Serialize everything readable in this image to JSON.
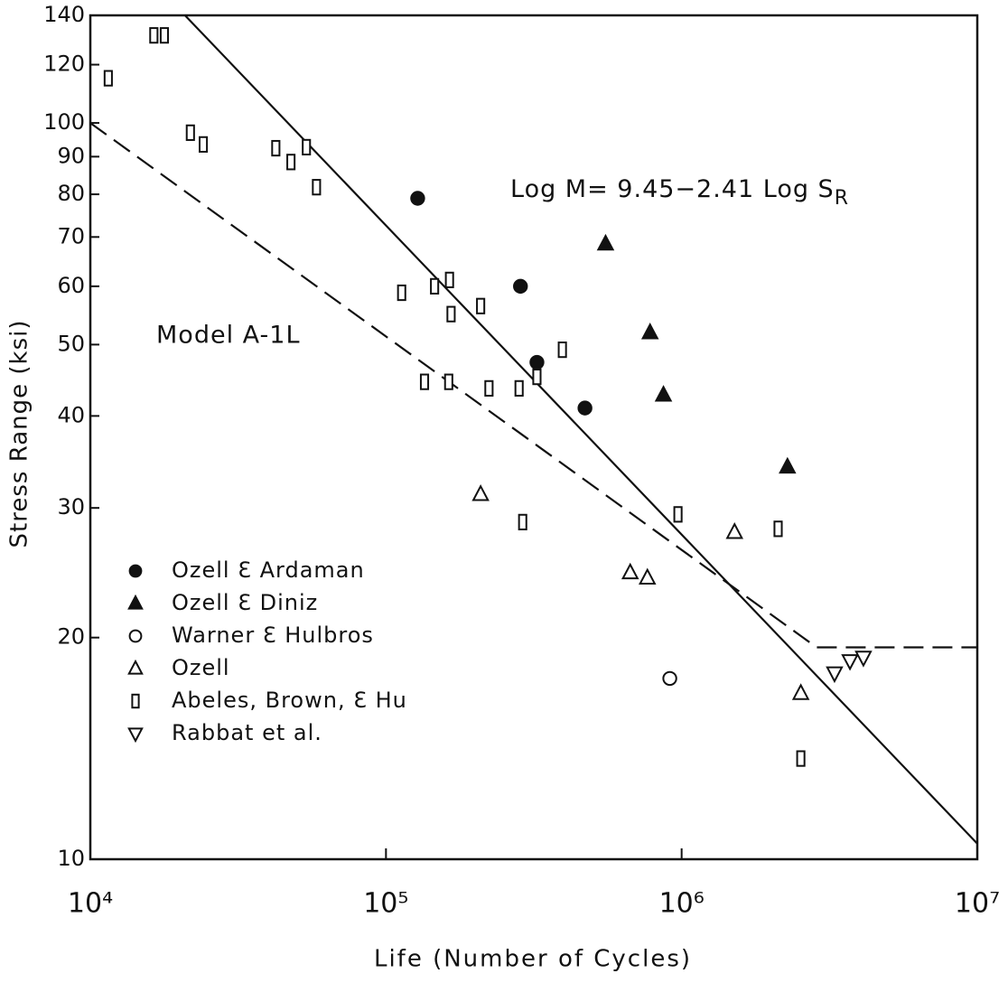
{
  "chart_data": {
    "type": "scatter",
    "xlabel": "Life (Number of Cycles)",
    "ylabel": "Stress Range (ksi)",
    "log_x": true,
    "log_y": true,
    "xlim": [
      10000,
      10000000
    ],
    "ylim": [
      10,
      140
    ],
    "xticks": [
      {
        "value": 10000,
        "label": "10⁴"
      },
      {
        "value": 100000,
        "label": "10⁵"
      },
      {
        "value": 1000000,
        "label": "10⁶"
      },
      {
        "value": 10000000,
        "label": "10⁷"
      }
    ],
    "yticks": [
      10,
      20,
      30,
      40,
      50,
      60,
      70,
      80,
      90,
      100,
      120,
      140
    ],
    "annotations": [
      {
        "text": "Log M= 9.45−2.41 Log S",
        "sub": "R"
      },
      {
        "text": "Model A-1L"
      }
    ],
    "series": [
      {
        "name": "Ozell Ɛ Ardaman",
        "color": "#111",
        "marker": "circle",
        "filled": true,
        "x": [
          128000,
          285000,
          324000,
          471000
        ],
        "values": [
          79,
          60,
          47.3,
          41
        ]
      },
      {
        "name": "Ozell Ɛ Diniz",
        "color": "#111",
        "marker": "triangle",
        "filled": true,
        "x": [
          553000,
          782000,
          868000,
          2280000
        ],
        "values": [
          68.5,
          51.9,
          42.7,
          34.1
        ]
      },
      {
        "name": "Warner Ɛ Hulbros",
        "color": "#111",
        "marker": "circle",
        "filled": false,
        "x": [
          912000
        ],
        "values": [
          17.6
        ]
      },
      {
        "name": "Ozell",
        "color": "#111",
        "marker": "triangle",
        "filled": false,
        "x": [
          209000,
          670000,
          766000,
          1510000,
          2530000
        ],
        "values": [
          31.3,
          24.5,
          24.1,
          27.8,
          16.8
        ]
      },
      {
        "name": "Abeles, Brown, Ɛ Hu",
        "color": "#111",
        "marker": "rect",
        "filled": false,
        "x": [
          11500,
          16400,
          17800,
          21800,
          24100,
          42400,
          47700,
          53800,
          58200,
          113000,
          146000,
          164000,
          166000,
          209000,
          395000,
          135000,
          163000,
          223000,
          282000,
          324000,
          290000,
          972000,
          2120000,
          2530000
        ],
        "values": [
          115,
          131.5,
          131.5,
          97,
          93.5,
          92.4,
          88.5,
          92.7,
          81.8,
          58.8,
          60,
          61.2,
          55,
          56.4,
          49.2,
          44.5,
          44.5,
          43.6,
          43.6,
          45.2,
          28.7,
          29.4,
          28.1,
          13.7
        ]
      },
      {
        "name": "Rabbat et al.",
        "color": "#111",
        "marker": "triangle-down",
        "filled": false,
        "x": [
          3290000,
          3710000,
          4120000
        ],
        "values": [
          17.9,
          18.6,
          18.8
        ]
      }
    ],
    "lines": [
      {
        "style": "solid",
        "x": [
          20900,
          10000000
        ],
        "values": [
          140,
          10.5
        ]
      },
      {
        "style": "dashed",
        "x": [
          10000,
          2860000,
          10000000
        ],
        "values": [
          100,
          19.4,
          19.4
        ]
      }
    ]
  }
}
